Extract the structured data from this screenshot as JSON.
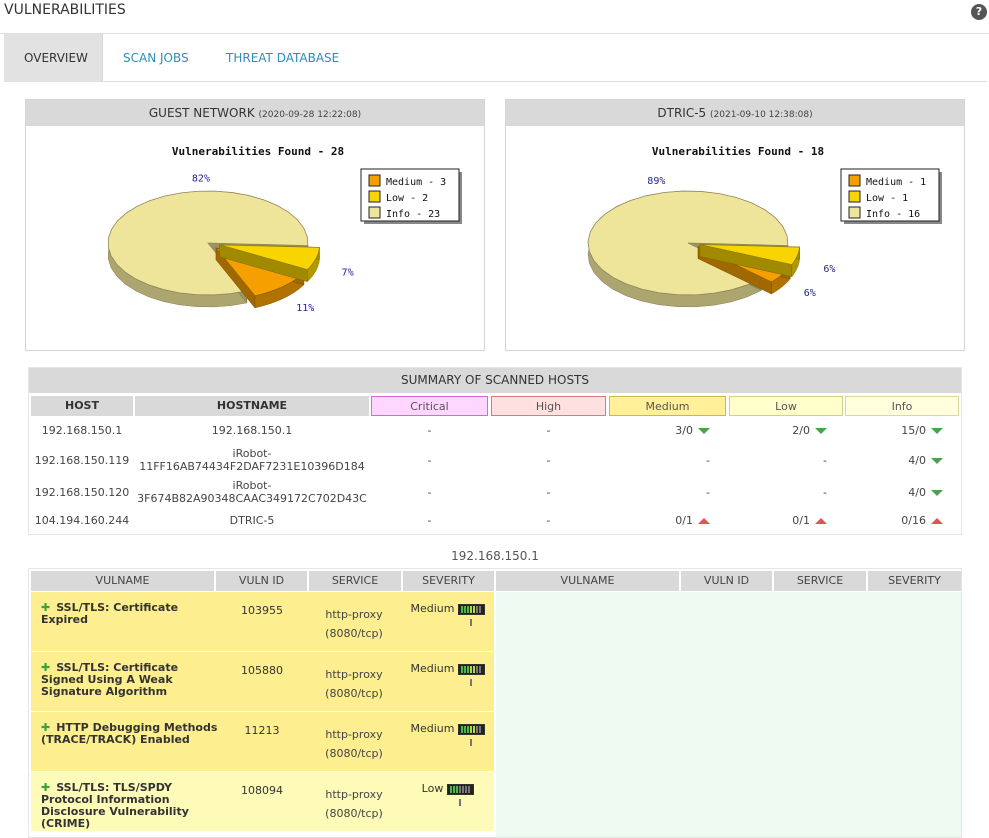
{
  "app": {
    "title": "VULNERABILITIES",
    "help_label": "?"
  },
  "tabs": [
    {
      "label": "OVERVIEW"
    },
    {
      "label": "SCAN JOBS"
    },
    {
      "label": "THREAT DATABASE"
    }
  ],
  "panels": [
    {
      "title": "GUEST NETWORK",
      "timestamp": "(2020-09-28 12:22:08)",
      "chart_title": "Vulnerabilities Found - 28",
      "legend": [
        "Medium - 3",
        "Low - 2",
        "Info - 23"
      ],
      "percent_labels": {
        "info": "82%",
        "low": "7%",
        "medium": "11%"
      }
    },
    {
      "title": "DTRIC-5",
      "timestamp": "(2021-09-10 12:38:08)",
      "chart_title": "Vulnerabilities Found - 18",
      "legend": [
        "Medium - 1",
        "Low - 1",
        "Info - 16"
      ],
      "percent_labels": {
        "info": "89%",
        "low": "6%",
        "medium": "6%"
      }
    }
  ],
  "chart_data": [
    {
      "type": "pie",
      "title": "Vulnerabilities Found - 28",
      "categories": [
        "Medium",
        "Low",
        "Info"
      ],
      "values": [
        3,
        2,
        23
      ],
      "percents": [
        11,
        7,
        82
      ],
      "colors": [
        "#f5a000",
        "#f8d400",
        "#efe59a"
      ],
      "legend": "top-right"
    },
    {
      "type": "pie",
      "title": "Vulnerabilities Found - 18",
      "categories": [
        "Medium",
        "Low",
        "Info"
      ],
      "values": [
        1,
        1,
        16
      ],
      "percents": [
        6,
        6,
        89
      ],
      "colors": [
        "#f5a000",
        "#f8d400",
        "#efe59a"
      ],
      "legend": "top-right"
    }
  ],
  "summary": {
    "title": "SUMMARY OF SCANNED HOSTS",
    "headers": [
      "HOST",
      "HOSTNAME",
      "Critical",
      "High",
      "Medium",
      "Low",
      "Info"
    ],
    "rows": [
      {
        "host": "192.168.150.1",
        "hostname": [
          "192.168.150.1"
        ],
        "critical": "-",
        "high": "-",
        "medium": "3/0",
        "low": "2/0",
        "info": "15/0",
        "medium_trend": "down",
        "low_trend": "down",
        "info_trend": "down"
      },
      {
        "host": "192.168.150.119",
        "hostname": [
          "iRobot-",
          "11FF16AB74434F2DAF7231E10396D184"
        ],
        "critical": "-",
        "high": "-",
        "medium": "-",
        "low": "-",
        "info": "4/0",
        "medium_trend": "",
        "low_trend": "",
        "info_trend": "down"
      },
      {
        "host": "192.168.150.120",
        "hostname": [
          "iRobot-",
          "3F674B82A90348CAAC349172C702D43C"
        ],
        "critical": "-",
        "high": "-",
        "medium": "-",
        "low": "-",
        "info": "4/0",
        "medium_trend": "",
        "low_trend": "",
        "info_trend": "down"
      },
      {
        "host": "104.194.160.244",
        "hostname": [
          "DTRIC-5"
        ],
        "critical": "-",
        "high": "-",
        "medium": "0/1",
        "low": "0/1",
        "info": "0/16",
        "medium_trend": "up",
        "low_trend": "up",
        "info_trend": "up"
      }
    ],
    "severity_colors": {
      "critical": {
        "bg": "#ffd6ff",
        "border": "#d36ad3"
      },
      "high": {
        "bg": "#ffe0e0",
        "border": "#d57b7b"
      },
      "medium": {
        "bg": "#fff099",
        "border": "#cdb84b"
      },
      "low": {
        "bg": "#ffffcc",
        "border": "#d4cf88"
      },
      "info": {
        "bg": "#ffffdd",
        "border": "#dcd7a0"
      }
    }
  },
  "host_detail": {
    "heading": "192.168.150.1",
    "headers": [
      "VULNAME",
      "VULN ID",
      "SERVICE",
      "SEVERITY",
      "VULNAME",
      "VULN ID",
      "SERVICE",
      "SEVERITY"
    ],
    "rows": [
      {
        "name": "SSL/TLS: Certificate Expired",
        "id": "103955",
        "service": [
          "http-proxy",
          "(8080/tcp)"
        ],
        "severity": "Medium",
        "level": 0.6
      },
      {
        "name": "SSL/TLS: Certificate Signed Using A Weak Signature Algorithm",
        "id": "105880",
        "service": [
          "http-proxy",
          "(8080/tcp)"
        ],
        "severity": "Medium",
        "level": 0.6
      },
      {
        "name": "HTTP Debugging Methods (TRACE/TRACK) Enabled",
        "id": "11213",
        "service": [
          "http-proxy",
          "(8080/tcp)"
        ],
        "severity": "Medium",
        "level": 0.6
      },
      {
        "name": "SSL/TLS: TLS/SPDY Protocol Information Disclosure Vulnerability (CRIME)",
        "id": "108094",
        "service": [
          "http-proxy",
          "(8080/tcp)"
        ],
        "severity": "Low",
        "level": 0.4
      }
    ],
    "row_colors": {
      "Medium": "#fdee8f",
      "Low": "#fefbb8"
    },
    "right_pane_color": "#effbf2"
  }
}
